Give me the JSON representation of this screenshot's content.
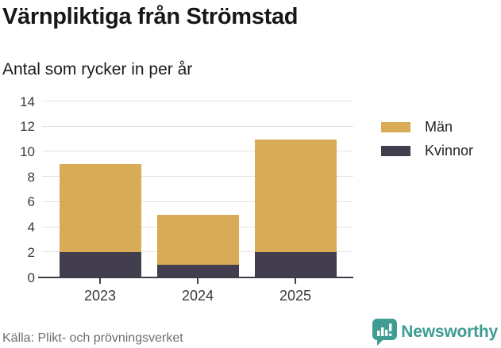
{
  "header": {
    "title": "Värnpliktiga från Strömstad",
    "subtitle": "Antal som rycker in per år"
  },
  "chart_data": {
    "type": "bar",
    "stacked": true,
    "title": "Värnpliktiga från Strömstad",
    "subtitle": "Antal som rycker in per år",
    "categories": [
      "2023",
      "2024",
      "2025"
    ],
    "series": [
      {
        "name": "Män",
        "color": "#d9ab57",
        "values": [
          7,
          4,
          9
        ]
      },
      {
        "name": "Kvinnor",
        "color": "#423e4d",
        "values": [
          2,
          1,
          2
        ]
      }
    ],
    "totals": [
      9,
      5,
      11
    ],
    "yticks": [
      0,
      2,
      4,
      6,
      8,
      10,
      12,
      14
    ],
    "ylim": [
      0,
      14
    ],
    "grid": true,
    "legend_position": "right"
  },
  "footer": {
    "source": "Källa: Plikt- och prövningsverket",
    "brand": "Newsworthy"
  },
  "icons": {
    "brand_icon": "newsworthy-speech-bubble-bar-chart-icon"
  },
  "colors": {
    "men": "#d9ab57",
    "women": "#423e4d",
    "brand_teal": "#3e9c93",
    "gridline": "#e3e3e3",
    "axis": "#403d4b",
    "source_text": "#6e6e6e"
  }
}
